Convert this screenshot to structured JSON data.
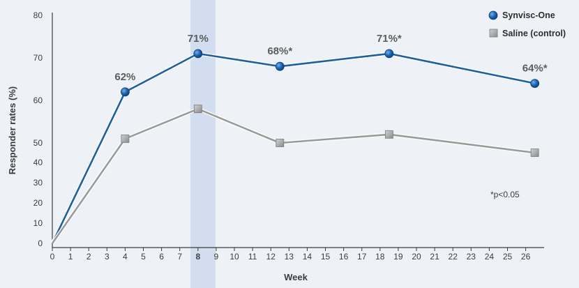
{
  "chart_data": {
    "type": "line",
    "xlabel": "Week",
    "ylabel": "Responder rates (%)",
    "x_ticks": [
      0,
      1,
      2,
      3,
      4,
      5,
      6,
      7,
      8,
      9,
      10,
      11,
      12,
      13,
      14,
      15,
      16,
      17,
      18,
      19,
      20,
      21,
      22,
      23,
      24,
      25,
      26
    ],
    "y_ticks": [
      0,
      10,
      20,
      30,
      40,
      50,
      60,
      70,
      80
    ],
    "y_scale": "broken",
    "highlight_week": 8,
    "note": "*p<0.05",
    "legend_position": "top-right",
    "series": [
      {
        "name": "Synvisc-One",
        "color": "#1f5f9e",
        "marker": "circle",
        "points": [
          {
            "x": 0,
            "y": 0
          },
          {
            "x": 4,
            "y": 62,
            "label": "62%"
          },
          {
            "x": 8,
            "y": 71,
            "label": "71%"
          },
          {
            "x": 12.5,
            "y": 68,
            "label": "68%*"
          },
          {
            "x": 18.5,
            "y": 71,
            "label": "71%*"
          },
          {
            "x": 26.5,
            "y": 64,
            "label": "64%*"
          }
        ]
      },
      {
        "name": "Saline (control)",
        "color": "#9a9a9a",
        "marker": "square",
        "points": [
          {
            "x": 0,
            "y": 0
          },
          {
            "x": 4,
            "y": 51
          },
          {
            "x": 8,
            "y": 58
          },
          {
            "x": 12.5,
            "y": 50
          },
          {
            "x": 18.5,
            "y": 52
          },
          {
            "x": 26.5,
            "y": 45
          }
        ]
      }
    ]
  }
}
